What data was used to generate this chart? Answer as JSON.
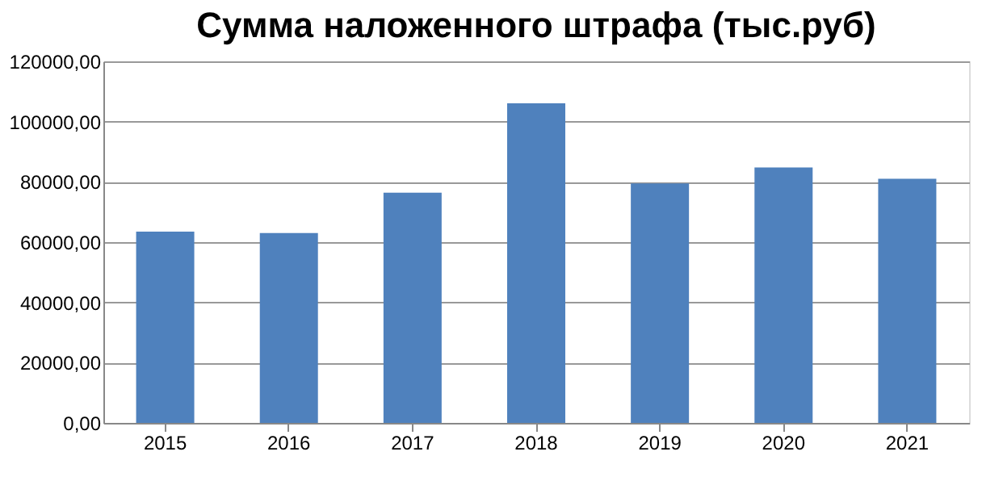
{
  "chart_data": {
    "type": "bar",
    "title": "Сумма наложенного штрафа (тыс.руб)",
    "categories": [
      "2015",
      "2016",
      "2017",
      "2018",
      "2019",
      "2020",
      "2021"
    ],
    "values": [
      63500,
      63000,
      76400,
      106100,
      79500,
      84800,
      81000
    ],
    "color": "#4f81bd",
    "ylim": [
      0,
      120000
    ],
    "yticks": [
      {
        "value": 0,
        "label": "0,00"
      },
      {
        "value": 20000,
        "label": "20000,00"
      },
      {
        "value": 40000,
        "label": "40000,00"
      },
      {
        "value": 60000,
        "label": "60000,00"
      },
      {
        "value": 80000,
        "label": "80000,00"
      },
      {
        "value": 100000,
        "label": "100000,00"
      },
      {
        "value": 120000,
        "label": "120000,00"
      }
    ],
    "grid": "y"
  }
}
